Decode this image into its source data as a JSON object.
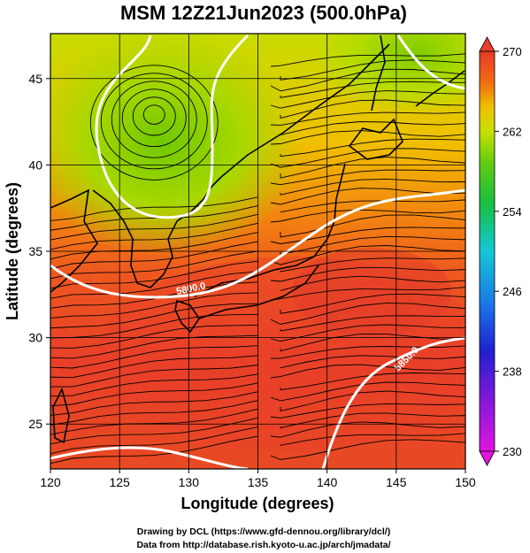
{
  "chart_data": {
    "type": "heatmap",
    "title": "MSM 12Z21Jun2023 (500.0hPa)",
    "xlabel": "Longitude (degrees)",
    "ylabel": "Latitude  (degrees)",
    "xlim": [
      120,
      150
    ],
    "ylim": [
      22.4,
      47.6
    ],
    "xticks": [
      120,
      125,
      130,
      135,
      140,
      145,
      150
    ],
    "yticks": [
      25,
      30,
      35,
      40,
      45
    ],
    "colorbar": {
      "min": 230,
      "max": 270,
      "ticks": [
        230,
        238,
        246,
        254,
        262,
        270
      ]
    },
    "contours": [
      {
        "label": "5800.0",
        "value": 5800
      },
      {
        "label": "5850.0",
        "value": 5850
      }
    ],
    "field_description": "temperature shading with geopotential height contours and wind streamlines",
    "low_center": {
      "lon": 127.5,
      "lat": 43
    }
  },
  "credits": {
    "line1": "Drawing by DCL (https://www.gfd-dennou.org/library/dcl/)",
    "line2": "Data from http://database.rish.kyoto-u.ac.jp/arch/jmadata/"
  },
  "colors": {
    "warm": "#e8402a",
    "cold": "#7fd000",
    "contour": "#ffffff",
    "coast": "#000000"
  }
}
